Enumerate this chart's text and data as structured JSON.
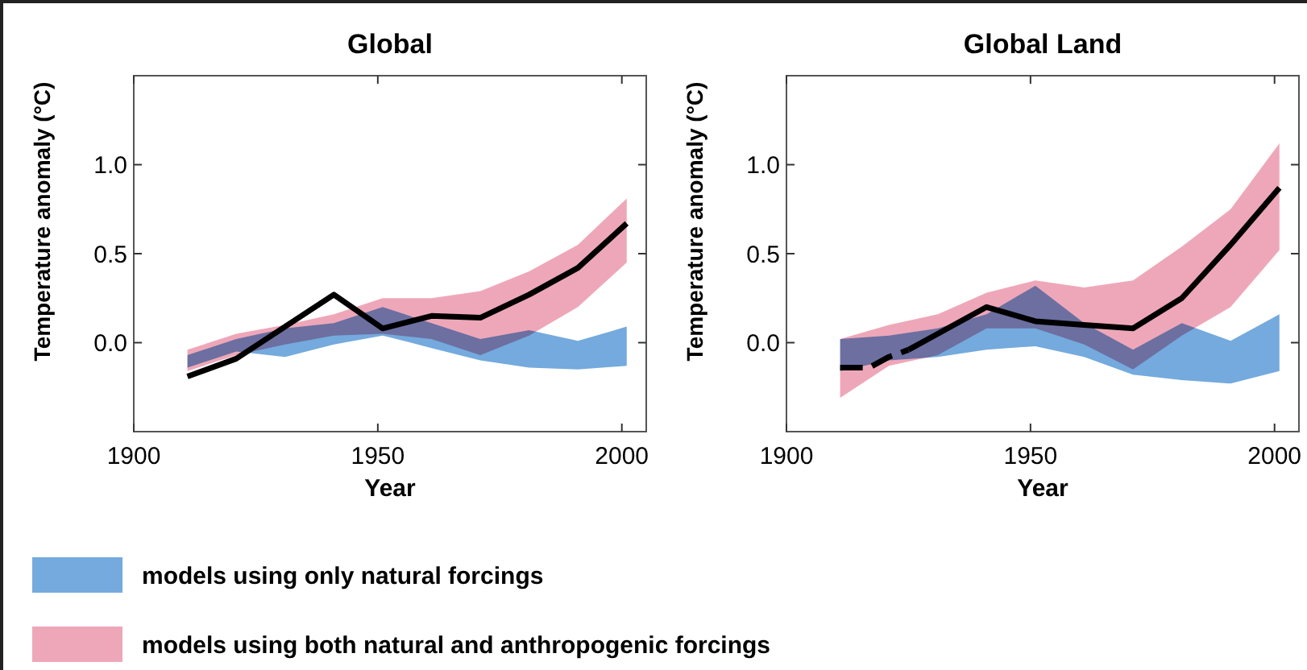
{
  "chart_data": [
    {
      "type": "line",
      "title": "Global",
      "xlabel": "Year",
      "ylabel": "Temperature anomaly (°C)",
      "xlim": [
        1900,
        2005
      ],
      "ylim": [
        -0.5,
        1.5
      ],
      "xticks": [
        1900,
        1950,
        2000
      ],
      "yticks": [
        {
          "value": 0,
          "label": "0.0"
        },
        {
          "value": 0.5,
          "label": "0.5"
        },
        {
          "value": 1,
          "label": "1.0"
        }
      ],
      "legend": "bottom",
      "x": [
        1911,
        1921,
        1931,
        1941,
        1951,
        1961,
        1971,
        1981,
        1991,
        2001
      ],
      "series": [
        {
          "type": "area",
          "name": "models using only natural forcings",
          "color": "#74aadd",
          "values": [
            null,
            null,
            null,
            null,
            null,
            null,
            null,
            null,
            null,
            null
          ],
          "lower": [
            -0.14,
            -0.05,
            -0.08,
            -0.01,
            0.04,
            -0.03,
            -0.1,
            -0.14,
            -0.15,
            -0.13
          ],
          "upper": [
            -0.07,
            0.02,
            0.08,
            0.11,
            0.2,
            0.11,
            0.02,
            0.07,
            0.01,
            0.09
          ]
        },
        {
          "type": "area",
          "name": "models using both natural and anthropogenic forcings",
          "color": "#eea7b9",
          "values": [
            null,
            null,
            null,
            null,
            null,
            null,
            null,
            null,
            null,
            null
          ],
          "lower": [
            -0.16,
            -0.07,
            -0.01,
            0.04,
            0.05,
            0.02,
            -0.07,
            0.04,
            0.2,
            0.45
          ],
          "upper": [
            -0.04,
            0.05,
            0.1,
            0.16,
            0.25,
            0.25,
            0.29,
            0.4,
            0.55,
            0.81
          ]
        },
        {
          "color": "#000000",
          "line_style": "solid",
          "values": [
            -0.19,
            -0.09,
            0.09,
            0.27,
            0.08,
            0.15,
            0.14,
            0.27,
            0.42,
            0.67
          ]
        }
      ]
    },
    {
      "type": "line",
      "title": "Global Land",
      "xlabel": "Year",
      "ylabel": "Temperature anomaly (°C)",
      "xlim": [
        1900,
        2005
      ],
      "ylim": [
        -0.5,
        1.5
      ],
      "xticks": [
        1900,
        1950,
        2000
      ],
      "yticks": [
        {
          "value": 0,
          "label": "0.0"
        },
        {
          "value": 0.5,
          "label": "0.5"
        },
        {
          "value": 1,
          "label": "1.0"
        }
      ],
      "x": [
        1911,
        1921,
        1931,
        1941,
        1951,
        1961,
        1971,
        1981,
        1991,
        2001
      ],
      "series": [
        {
          "type": "area",
          "color": "#74aadd",
          "values": [
            null,
            null,
            null,
            null,
            null,
            null,
            null,
            null,
            null,
            null
          ],
          "lower": [
            -0.16,
            -0.1,
            -0.08,
            -0.04,
            -0.02,
            -0.08,
            -0.18,
            -0.21,
            -0.23,
            -0.16
          ],
          "upper": [
            0.02,
            0.04,
            0.08,
            0.16,
            0.32,
            0.11,
            -0.04,
            0.11,
            0.01,
            0.16
          ]
        },
        {
          "type": "area",
          "color": "#eea7b9",
          "values": [
            null,
            null,
            null,
            null,
            null,
            null,
            null,
            null,
            null,
            null
          ],
          "lower": [
            -0.31,
            -0.13,
            -0.07,
            0.08,
            0.08,
            -0.01,
            -0.15,
            0.04,
            0.2,
            0.52
          ],
          "upper": [
            0.02,
            0.1,
            0.16,
            0.28,
            0.35,
            0.31,
            0.35,
            0.54,
            0.75,
            1.12
          ]
        },
        {
          "color": "#000000",
          "line_style": "dashed",
          "x": [
            1911,
            1917,
            1921,
            1925
          ],
          "values": [
            -0.14,
            -0.14,
            -0.08,
            -0.04
          ]
        },
        {
          "color": "#000000",
          "line_style": "solid",
          "x": [
            1925,
            1931,
            1941,
            1951,
            1961,
            1971,
            1981,
            1991,
            2001
          ],
          "values": [
            -0.04,
            0.05,
            0.2,
            0.12,
            0.1,
            0.08,
            0.25,
            0.55,
            0.87
          ]
        }
      ]
    }
  ]
}
